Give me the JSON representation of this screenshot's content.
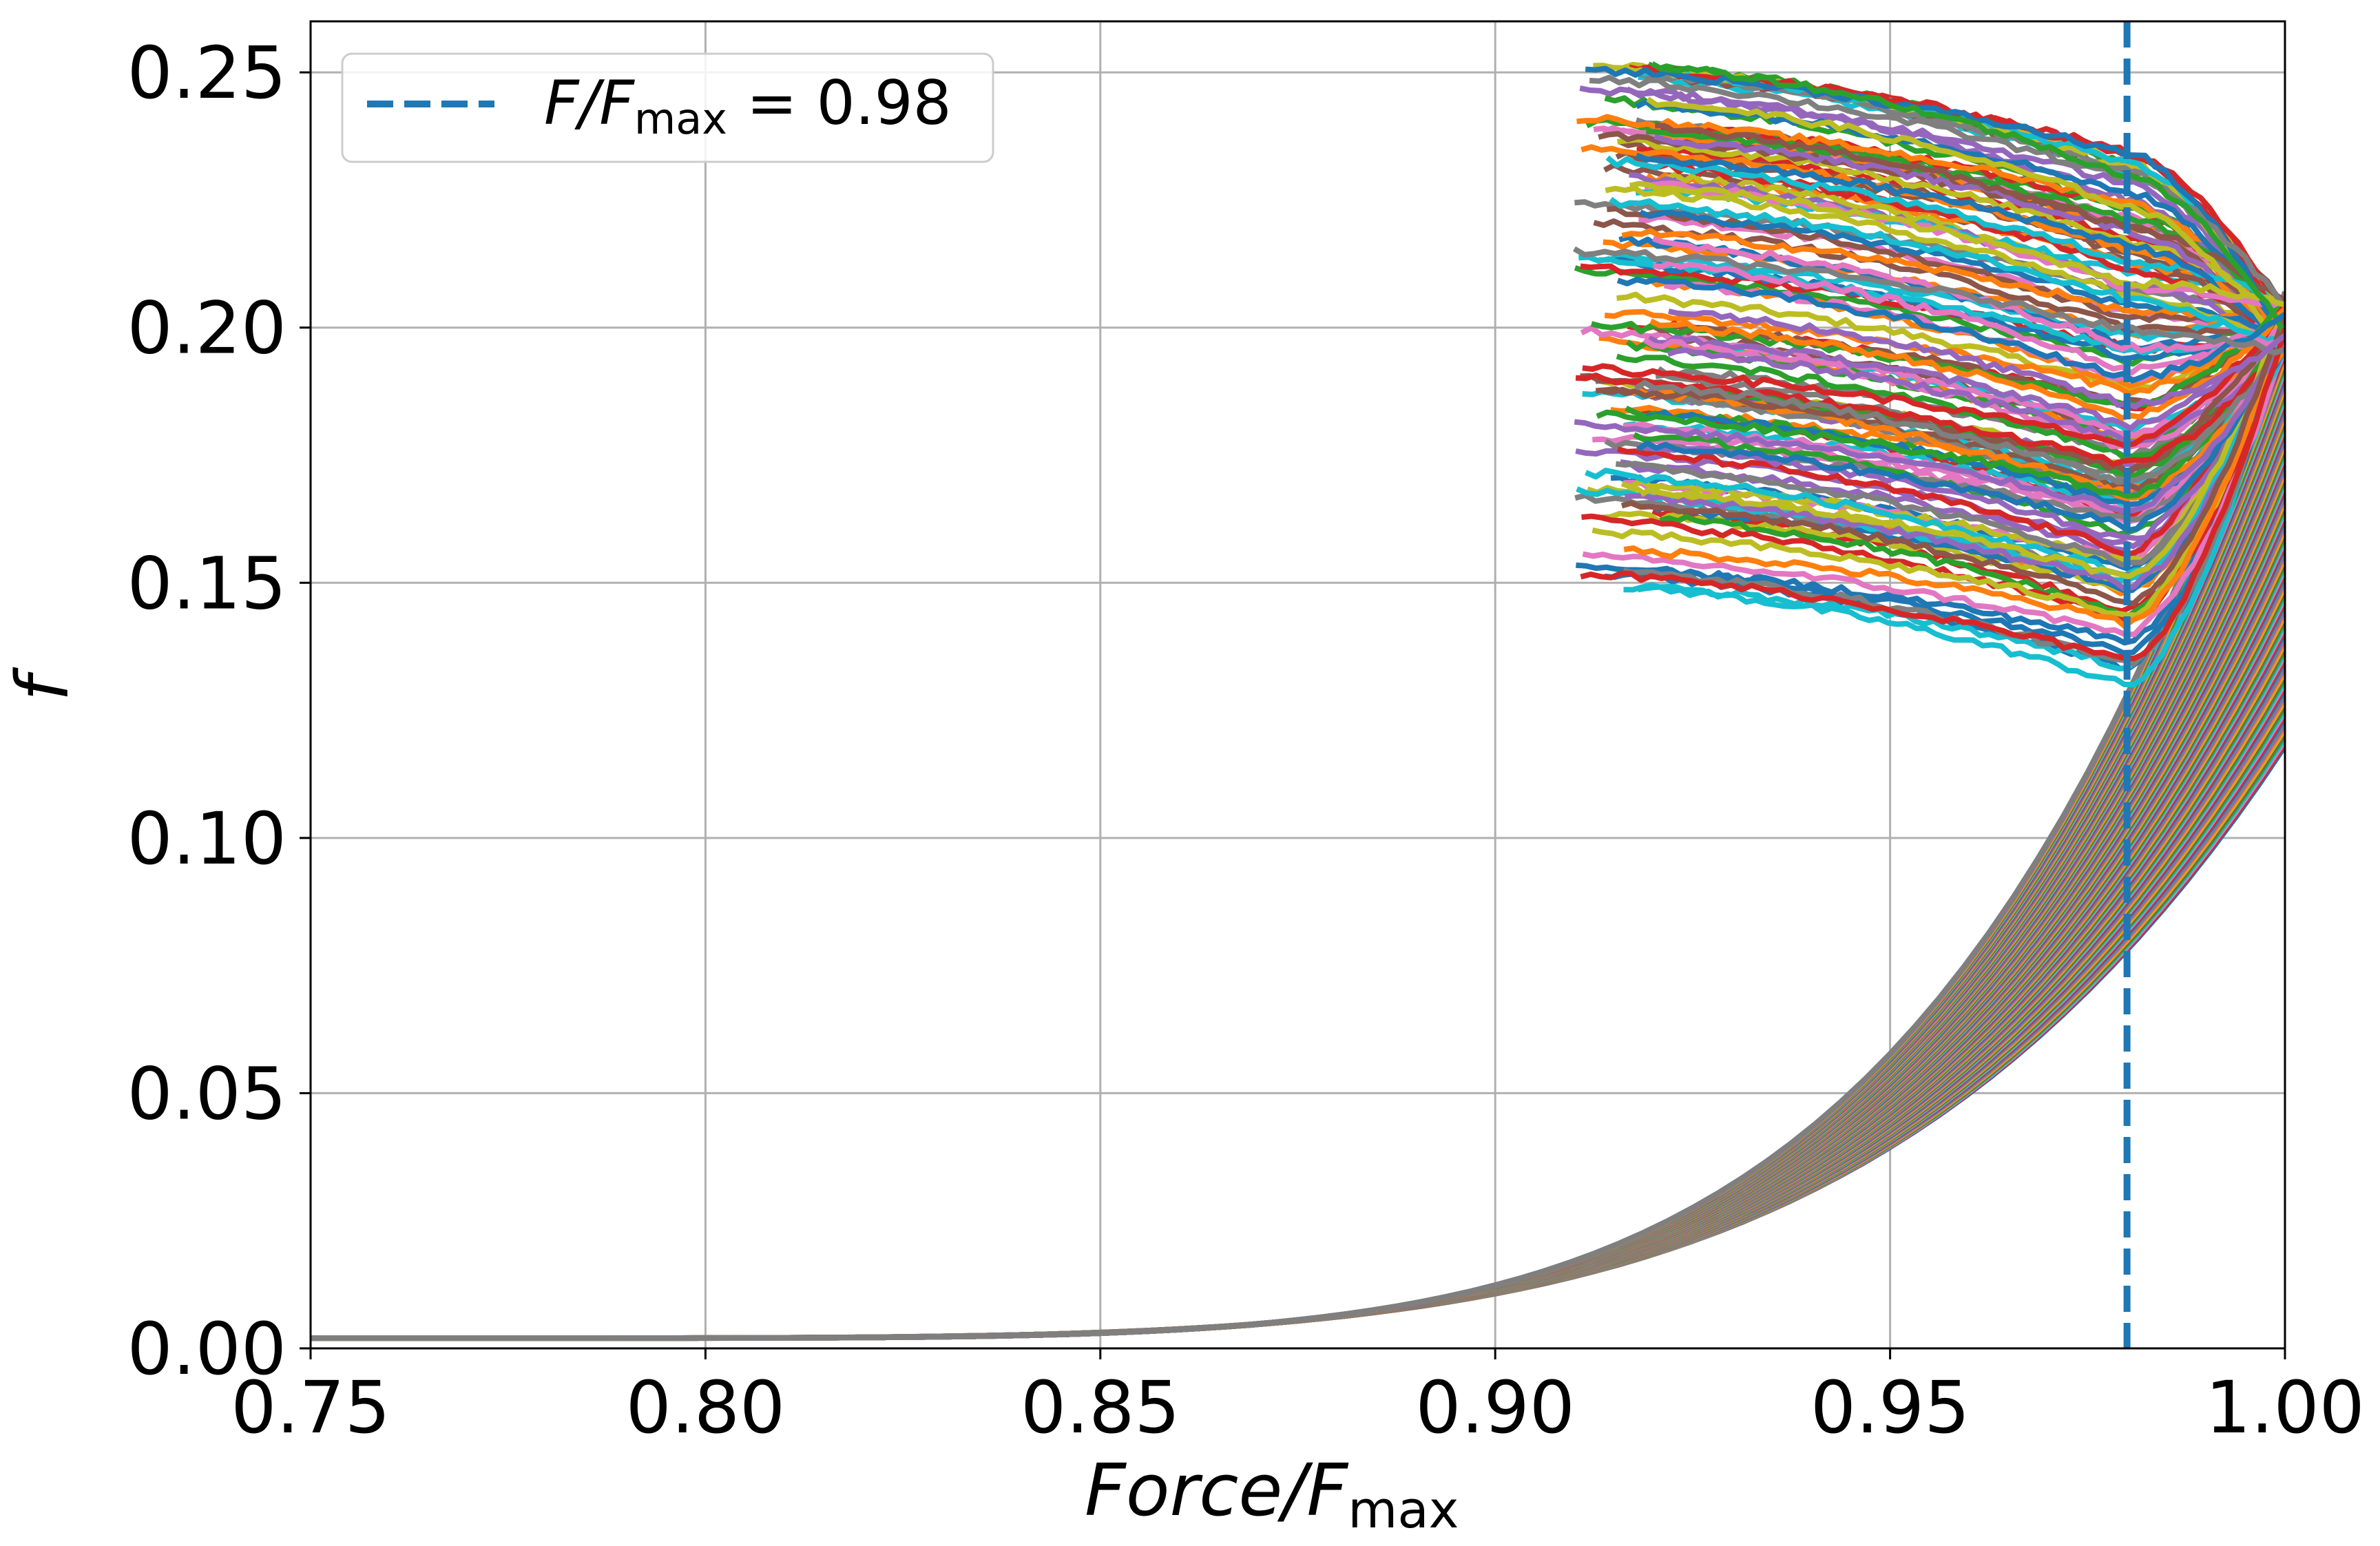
{
  "chart_data": {
    "type": "line",
    "title": "",
    "xlabel": "Force/F_max",
    "xlabel_main": "Force/F",
    "xlabel_sub": "max",
    "ylabel": "f",
    "xlim": [
      0.75,
      1.0
    ],
    "ylim": [
      0.0,
      0.26
    ],
    "xticks": [
      0.75,
      0.8,
      0.85,
      0.9,
      0.95,
      1.0
    ],
    "xtick_labels": [
      "0.75",
      "0.80",
      "0.85",
      "0.90",
      "0.95",
      "1.00"
    ],
    "yticks": [
      0.0,
      0.05,
      0.1,
      0.15,
      0.2,
      0.25
    ],
    "ytick_labels": [
      "0.00",
      "0.05",
      "0.10",
      "0.15",
      "0.20",
      "0.25"
    ],
    "grid": true,
    "legend": {
      "placement": "top-left",
      "label": "F/F_max = 0.98",
      "label_part1": "F/F",
      "label_sub": "max",
      "label_part2": " = 0.98",
      "color": "#1f77b4",
      "style": "dashed"
    },
    "reference_line": {
      "x": 0.98,
      "color": "#1f77b4",
      "style": "dashed"
    },
    "palette": [
      "#1f77b4",
      "#ff7f0e",
      "#2ca02c",
      "#d62728",
      "#9467bd",
      "#8c564b",
      "#e377c2",
      "#7f7f7f",
      "#bcbd22",
      "#17becf"
    ],
    "series_families": [
      {
        "name": "loading curves (rising)",
        "count": 160,
        "x_start": 0.75,
        "x_end": 1.0,
        "y_at_x_start": 0.002,
        "y_at_x_end_range": [
          0.118,
          0.207
        ],
        "y_at_0_98_range": [
          0.078,
          0.128
        ],
        "sample_x": [
          0.75,
          0.8,
          0.85,
          0.9,
          0.95,
          0.98,
          1.0
        ],
        "sample_y_upper": [
          0.002,
          0.002,
          0.005,
          0.021,
          0.07,
          0.128,
          0.207
        ],
        "sample_y_lower": [
          0.002,
          0.002,
          0.003,
          0.012,
          0.045,
          0.078,
          0.118
        ]
      },
      {
        "name": "post-peak curves (decreasing)",
        "count": 140,
        "x_start_range": [
          0.91,
          0.922
        ],
        "x_end": 1.0,
        "y_start_range": [
          0.149,
          0.252
        ],
        "y_at_0_98_range": [
          0.132,
          0.233
        ],
        "y_end_approx": 0.2
      }
    ]
  }
}
